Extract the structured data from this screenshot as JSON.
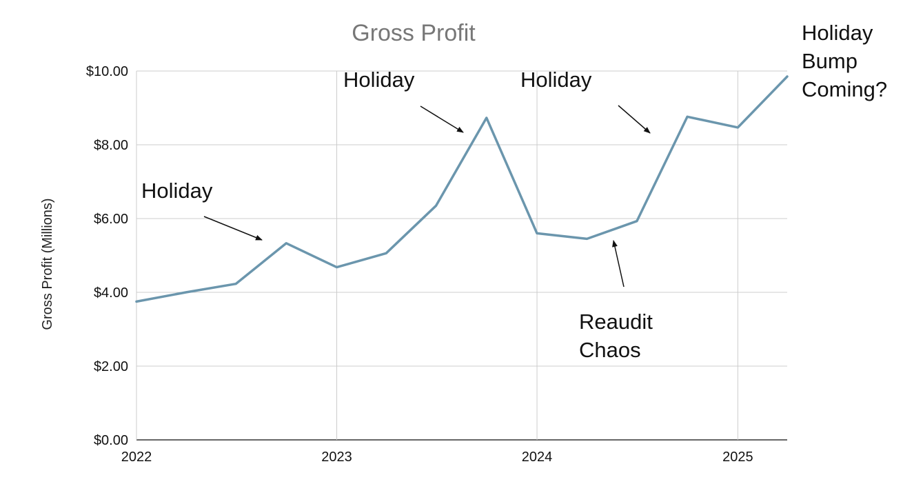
{
  "chart_data": {
    "type": "line",
    "title": "Gross Profit",
    "xlabel": "",
    "ylabel": "Gross Profit (Millions)",
    "x": [
      "2022-01-01",
      "2022-04-01",
      "2022-07-01",
      "2022-10-01",
      "2023-01-01",
      "2023-04-01",
      "2023-07-01",
      "2023-10-01",
      "2024-01-01",
      "2024-04-01",
      "2024-07-01",
      "2024-10-01",
      "2025-01-01",
      "2025-04-01"
    ],
    "values": [
      3.75,
      4.0,
      4.23,
      5.33,
      4.68,
      5.06,
      6.35,
      8.73,
      5.6,
      5.45,
      5.93,
      8.76,
      8.47,
      9.85
    ],
    "x_ticks": [
      "2022",
      "2023",
      "2024",
      "2025"
    ],
    "y_ticks": [
      "$0.00",
      "$2.00",
      "$4.00",
      "$6.00",
      "$8.00",
      "$10.00"
    ],
    "ylim": [
      0,
      10
    ],
    "xlim": [
      "2022-01-01",
      "2025-04-01"
    ],
    "grid": true,
    "legend": "none",
    "line_color": "#6b96ad",
    "annotations": [
      {
        "lines": [
          "Holiday"
        ],
        "arrow_to_date": "2022-10-01",
        "arrow_to_value": 5.33
      },
      {
        "lines": [
          "Holiday"
        ],
        "arrow_to_date": "2023-10-01",
        "arrow_to_value": 8.73
      },
      {
        "lines": [
          "Holiday"
        ],
        "arrow_to_date": "2024-10-01",
        "arrow_to_value": 8.76
      },
      {
        "lines": [
          "Reaudit",
          "Chaos"
        ],
        "arrow_to_date": "2024-04-01",
        "arrow_to_value": 5.45
      },
      {
        "lines": [
          "Holiday",
          "Bump",
          "Coming?"
        ],
        "arrow_to_date": null,
        "arrow_to_value": null
      }
    ]
  }
}
